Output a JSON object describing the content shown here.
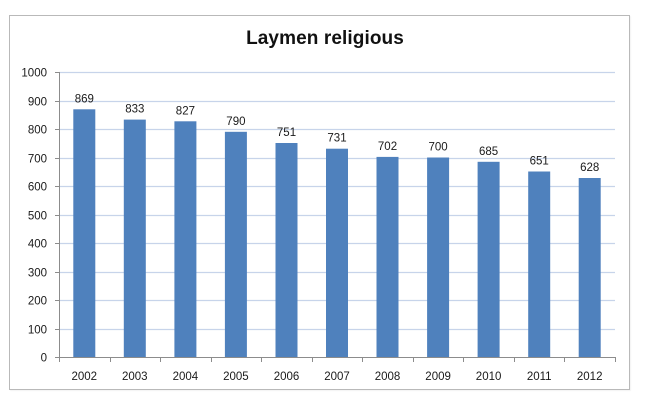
{
  "chart_data": {
    "type": "bar",
    "title": "Laymen religious",
    "xlabel": "",
    "ylabel": "",
    "categories": [
      "2002",
      "2003",
      "2004",
      "2005",
      "2006",
      "2007",
      "2008",
      "2009",
      "2010",
      "2011",
      "2012"
    ],
    "values": [
      869,
      833,
      827,
      790,
      751,
      731,
      702,
      700,
      685,
      651,
      628
    ],
    "series": [
      {
        "name": "Laymen religious",
        "values": [
          869,
          833,
          827,
          790,
          751,
          731,
          702,
          700,
          685,
          651,
          628
        ]
      }
    ],
    "ylim": [
      0,
      1000
    ],
    "yticks": [
      0,
      100,
      200,
      300,
      400,
      500,
      600,
      700,
      800,
      900,
      1000
    ],
    "grid": true,
    "legend": "none",
    "data_labels": true,
    "bar_color": "#4F81BD",
    "gridline_color": "#C7D4EA"
  }
}
